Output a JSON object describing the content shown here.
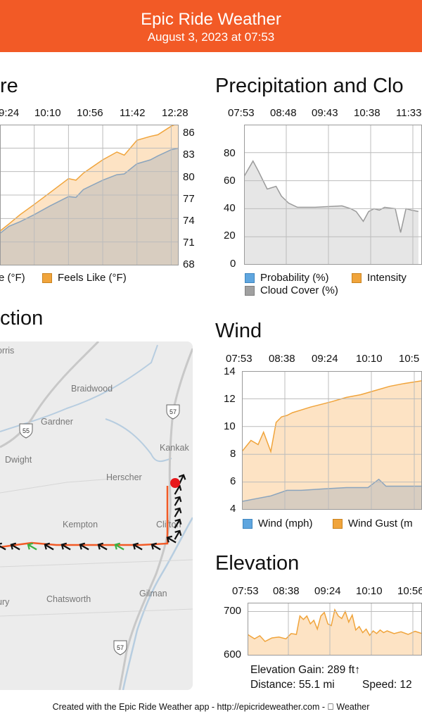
{
  "header": {
    "title": "Epic Ride Weather",
    "subtitle": "August 3, 2023 at 07:53"
  },
  "colors": {
    "accent": "#f25a26",
    "gray_fill": "#d8cdc0",
    "orange_fill": "#fde3c4",
    "orange_line": "#f0a43b",
    "blue_line": "#8aa4bd",
    "route": "#f25a26",
    "end_marker": "#e8171b"
  },
  "temperature": {
    "title_visible": "re",
    "time_ticks": [
      "9:24",
      "10:10",
      "10:56",
      "11:42",
      "12:28"
    ],
    "y_ticks": [
      "86",
      "83",
      "80",
      "77",
      "74",
      "71",
      "68"
    ],
    "legend": [
      {
        "label": "e (°F)",
        "color": "#a0a0a0"
      },
      {
        "label": "Feels Like (°F)",
        "color": "#f0a43b"
      }
    ],
    "chart_data": {
      "type": "area",
      "ylim": [
        68,
        86
      ],
      "series": [
        {
          "name": "Feels Like (°F)",
          "x": [
            "08:50",
            "09:05",
            "09:24",
            "09:45",
            "10:10",
            "10:20",
            "10:30",
            "10:56",
            "11:15",
            "11:25",
            "11:42",
            "12:00",
            "12:10",
            "12:28",
            "12:40"
          ],
          "values": [
            73.3,
            74.5,
            75.8,
            77.3,
            79.1,
            78.9,
            79.8,
            81.5,
            82.5,
            82.1,
            84.0,
            84.5,
            84.7,
            85.8,
            86.2
          ]
        },
        {
          "name": "e (°F)",
          "x": [
            "08:50",
            "09:05",
            "09:24",
            "09:45",
            "10:10",
            "10:20",
            "10:30",
            "10:56",
            "11:15",
            "11:25",
            "11:42",
            "12:00",
            "12:10",
            "12:28",
            "12:40"
          ],
          "values": [
            73.0,
            73.6,
            74.5,
            75.6,
            76.8,
            76.7,
            77.7,
            78.9,
            79.6,
            79.7,
            81.0,
            81.5,
            82.0,
            82.8,
            83.0
          ]
        }
      ]
    }
  },
  "precipitation": {
    "title": "Precipitation and Clo",
    "time_ticks": [
      "07:53",
      "08:48",
      "09:43",
      "10:38",
      "11:33"
    ],
    "y_ticks": [
      "80",
      "60",
      "40",
      "20",
      "0"
    ],
    "legend": [
      {
        "label": "Probability (%)",
        "color": "#5fa6df"
      },
      {
        "label": "Intensity",
        "color": "#f0a43b"
      },
      {
        "label": "Cloud Cover (%)",
        "color": "#a0a0a0"
      }
    ],
    "chart_data": {
      "type": "area",
      "ylim": [
        0,
        100
      ],
      "series": [
        {
          "name": "Cloud Cover (%)",
          "x_pct": [
            0,
            5,
            8,
            13,
            18,
            21,
            25,
            30,
            40,
            55,
            60,
            63,
            67,
            70,
            73,
            76,
            79,
            85,
            88,
            91,
            94,
            98
          ],
          "values": [
            63,
            74,
            67,
            54,
            56,
            49,
            44,
            41,
            41,
            42,
            40,
            38,
            31,
            38,
            40,
            39,
            41,
            40,
            23,
            40,
            39,
            38
          ]
        }
      ]
    }
  },
  "direction": {
    "title_visible": "ction",
    "map_labels": [
      "orris",
      "Braidwood",
      "Gardner",
      "Dwight",
      "Kankak",
      "Herscher",
      "Kempton",
      "Clifton",
      "Chatsworth",
      "Gilman",
      "ury"
    ],
    "highways": [
      "55",
      "57",
      "57"
    ]
  },
  "wind": {
    "title": "Wind",
    "time_ticks": [
      "07:53",
      "08:38",
      "09:24",
      "10:10",
      "10:5"
    ],
    "y_ticks": [
      "14",
      "12",
      "10",
      "8",
      "6",
      "4"
    ],
    "legend": [
      {
        "label": "Wind (mph)",
        "color": "#5fa6df"
      },
      {
        "label": "Wind Gust (m",
        "color": "#f0a43b"
      }
    ],
    "chart_data": {
      "type": "area",
      "ylim": [
        4,
        14
      ],
      "series": [
        {
          "name": "Wind Gust (m",
          "x_pct": [
            0,
            5,
            9,
            12,
            16,
            19,
            22,
            25,
            28,
            33,
            38,
            44,
            50,
            58,
            66,
            74,
            82,
            90,
            100
          ],
          "values": [
            8.2,
            9.0,
            8.7,
            9.6,
            8.2,
            10.3,
            10.7,
            10.8,
            11.0,
            11.2,
            11.4,
            11.6,
            11.8,
            12.1,
            12.3,
            12.6,
            12.9,
            13.1,
            13.3
          ]
        },
        {
          "name": "Wind (mph)",
          "x_pct": [
            0,
            8,
            16,
            25,
            33,
            45,
            58,
            70,
            76,
            80,
            86,
            100
          ],
          "values": [
            4.6,
            4.8,
            5.0,
            5.4,
            5.4,
            5.5,
            5.6,
            5.6,
            6.2,
            5.7,
            5.7,
            5.7
          ]
        }
      ]
    }
  },
  "elevation": {
    "title": "Elevation",
    "time_ticks": [
      "07:53",
      "08:38",
      "09:24",
      "10:10",
      "10:56"
    ],
    "y_ticks": [
      "700",
      "600"
    ],
    "gain_label": "Elevation Gain: 289 ft↑",
    "distance_label": "Distance: 55.1 mi",
    "speed_label": "Speed: 12",
    "chart_data": {
      "type": "area",
      "ylim": [
        600,
        720
      ],
      "series": [
        {
          "name": "Elevation",
          "x_pct": [
            0,
            4,
            7,
            10,
            14,
            18,
            22,
            25,
            28,
            30,
            32,
            34,
            36,
            38,
            40,
            42,
            44,
            46,
            48,
            50,
            52,
            54,
            56,
            58,
            60,
            62,
            64,
            66,
            68,
            70,
            72,
            74,
            76,
            78,
            80,
            84,
            88,
            92,
            96,
            100
          ],
          "values": [
            648,
            638,
            645,
            632,
            640,
            642,
            638,
            650,
            648,
            690,
            682,
            690,
            672,
            680,
            660,
            690,
            698,
            672,
            668,
            704,
            690,
            684,
            700,
            676,
            692,
            658,
            666,
            652,
            660,
            646,
            656,
            650,
            658,
            652,
            656,
            650,
            654,
            648,
            655,
            650
          ]
        }
      ]
    }
  },
  "footer": {
    "text": "Created with the Epic Ride Weather app - http://epicrideweather.com - ",
    "weather_label": "Weather"
  }
}
